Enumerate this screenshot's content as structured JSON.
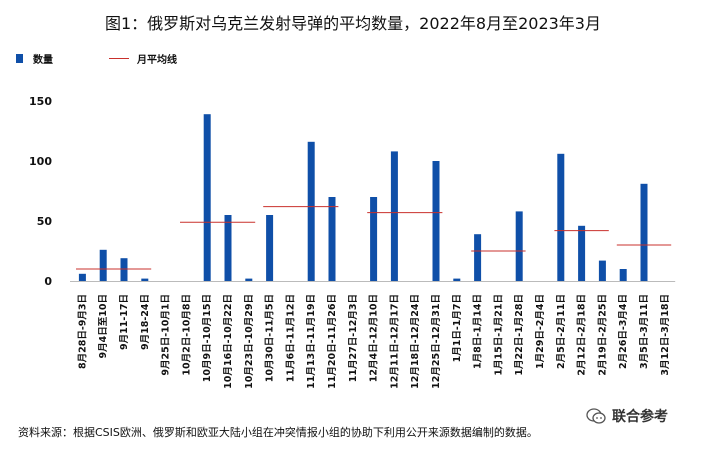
{
  "title": "图1：俄罗斯对乌克兰发射导弹的平均数量，2022年8月至2023年3月",
  "legend": {
    "bar_label": "数量",
    "line_label": "月平均线"
  },
  "source": "资料来源：根据CSIS欧洲、俄罗斯和欧亚大陆小组在冲突情报小组的协助下利用公开来源数据编制的数据。",
  "watermark": {
    "text": "联合参考",
    "icon": "wechat-icon"
  },
  "colors": {
    "bar": "#0f4fa8",
    "line": "#c9302c"
  },
  "chart_data": {
    "type": "bar",
    "title": "图1：俄罗斯对乌克兰发射导弹的平均数量，2022年8月至2023年3月",
    "xlabel": "",
    "ylabel": "",
    "ylim": [
      0,
      150
    ],
    "yticks": [
      0,
      50,
      100,
      150
    ],
    "grid": false,
    "legend_position": "top-left",
    "categories": [
      "8月28日-9月3日",
      "9月4日至10日",
      "9月11-17日",
      "9月18-24日",
      "9月25日-10月1日",
      "10月2日-10月8日",
      "10月9日-10月15日",
      "10月16日-10月22日",
      "10月23日-10月29日",
      "10月30日-11月5日",
      "11月6日-11月12日",
      "11月13日-11月19日",
      "11月20日-11月26日",
      "11月27日-12月3日",
      "12月4日-12月10日",
      "12月11日-12月17日",
      "12月18日-12月24日",
      "12月25日-12月31日",
      "1月1日-1月7日",
      "1月8日-1月14日",
      "1月15日-1月21日",
      "1月22日-1月28日",
      "1月29日-2月4日",
      "2月5日-2月11日",
      "2月12日-2月18日",
      "2月19日-2月25日",
      "2月26日-3月4日",
      "3月5日-3月11日",
      "3月12日-3月18日"
    ],
    "series": [
      {
        "name": "数量",
        "type": "bar",
        "values": [
          6,
          26,
          19,
          2,
          0,
          0,
          139,
          55,
          2,
          55,
          0,
          116,
          70,
          0,
          70,
          108,
          0,
          100,
          2,
          39,
          0,
          58,
          0,
          106,
          46,
          17,
          10,
          81,
          0
        ]
      },
      {
        "name": "月平均线",
        "type": "step",
        "segments": [
          {
            "from": "8月28日-9月3日",
            "to": "9月18-24日",
            "value": 10
          },
          {
            "from": "10月2日-10月8日",
            "to": "10月23日-10月29日",
            "value": 49
          },
          {
            "from": "10月30日-11月5日",
            "to": "11月20日-11月26日",
            "value": 62
          },
          {
            "from": "12月4日-12月10日",
            "to": "12月25日-12月31日",
            "value": 57
          },
          {
            "from": "1月8日-1月14日",
            "to": "1月22日-1月28日",
            "value": 25
          },
          {
            "from": "2月5日-2月11日",
            "to": "2月19日-2月25日",
            "value": 42
          },
          {
            "from": "2月26日-3月4日",
            "to": "3月12日-3月18日",
            "value": 30
          }
        ]
      }
    ]
  }
}
